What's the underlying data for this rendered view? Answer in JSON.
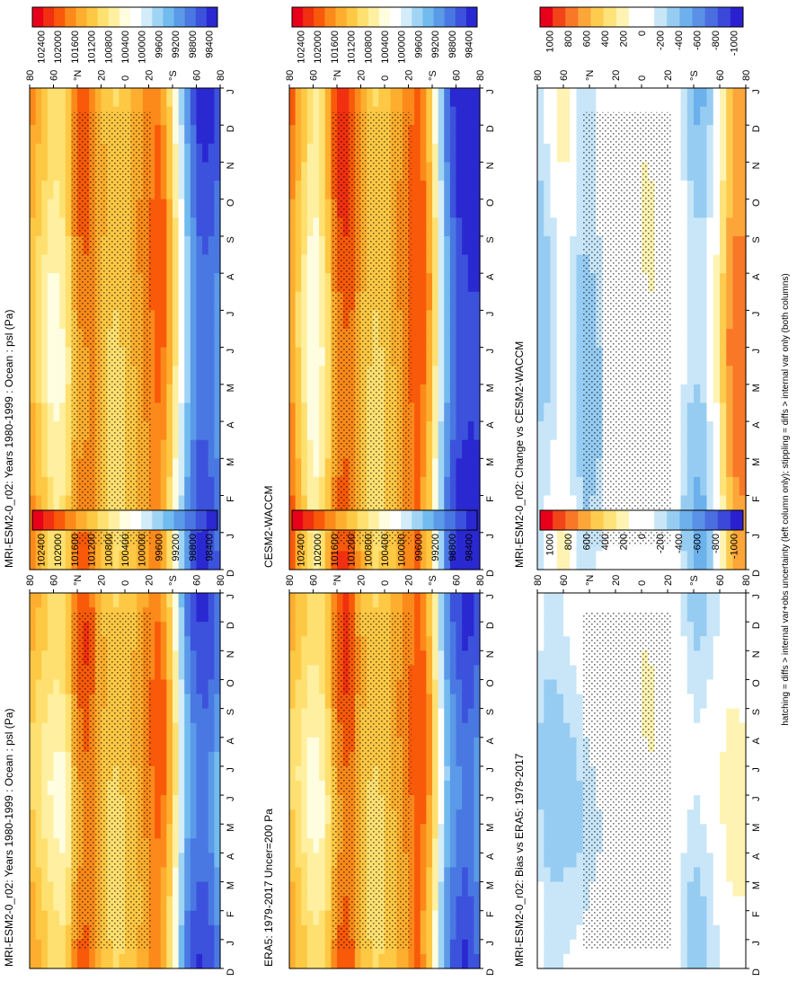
{
  "figure": {
    "footnote": "hatching = diffs > internal var+obs uncertainty (left column only); stippling = diffs > internal var only (both columns)"
  },
  "colors": {
    "abs_scale": [
      "#e8001a",
      "#f03010",
      "#f85a0a",
      "#fb8a1a",
      "#fdae2e",
      "#fdc844",
      "#fee070",
      "#fef0a0",
      "#fffde0",
      "#ffffff",
      "#d2ecfa",
      "#a0d4f5",
      "#72bbee",
      "#5a9ae8",
      "#4a78e2",
      "#3c52dc",
      "#2a28d0"
    ],
    "diff_scale": [
      "#e8001a",
      "#f24418",
      "#f87828",
      "#fca63a",
      "#fdcc4e",
      "#fee27a",
      "#fef3b2",
      "#ffffff",
      "#ffffff",
      "#c8e6f8",
      "#96ccf2",
      "#6cb0ec",
      "#5a90e6",
      "#4a6ee0",
      "#3c48da",
      "#2a20d0"
    ]
  },
  "chart_data": [
    {
      "type": "heatmap",
      "panel": "left-top",
      "title": "MRI-ESM2-0_r02: Years 1980-1999 : Ocean : psl (Pa)",
      "x_ticks": [
        "D",
        "J",
        "F",
        "M",
        "A",
        "M",
        "J",
        "J",
        "A",
        "S",
        "O",
        "N",
        "D",
        "J"
      ],
      "y_ticks": [
        "80",
        "60",
        "40",
        "20",
        "0",
        "20",
        "40",
        "60",
        "80"
      ],
      "y_tick_labels_rendered": [
        "80",
        "60",
        "°N",
        "20",
        "0",
        "20",
        "°S",
        "60",
        "80"
      ],
      "colorbar_ticks": [
        "102400",
        "102000",
        "101600",
        "101200",
        "100800",
        "100400",
        "100000",
        "99600",
        "99200",
        "98800",
        "98400"
      ],
      "latitude_profile_Pa": [
        [
          80,
          101300
        ],
        [
          60,
          100700
        ],
        [
          50,
          100700
        ],
        [
          40,
          101700
        ],
        [
          30,
          101900
        ],
        [
          20,
          101300
        ],
        [
          10,
          101000
        ],
        [
          0,
          101100
        ],
        [
          -10,
          101300
        ],
        [
          -20,
          101700
        ],
        [
          -30,
          101900
        ],
        [
          -40,
          101000
        ],
        [
          -50,
          99300
        ],
        [
          -60,
          98700
        ],
        [
          -70,
          98700
        ],
        [
          -80,
          99200
        ]
      ],
      "stippling": "most of 30N–50S",
      "hatching": "near 55N in Feb–Mar and Nov–Dec"
    },
    {
      "type": "heatmap",
      "panel": "right-top",
      "title": "MRI-ESM2-0_r02: Years 1980-1999 : Ocean : psl (Pa)",
      "x_ticks": [
        "D",
        "J",
        "F",
        "M",
        "A",
        "M",
        "J",
        "J",
        "A",
        "S",
        "O",
        "N",
        "D",
        "J"
      ],
      "y_ticks": [
        "80",
        "60",
        "40",
        "20",
        "0",
        "20",
        "40",
        "60",
        "80"
      ],
      "y_tick_labels_rendered": [
        "80",
        "60",
        "°N",
        "20",
        "0",
        "20",
        "°S",
        "60",
        "80"
      ],
      "colorbar_ticks": [
        "102400",
        "102000",
        "101600",
        "101200",
        "100800",
        "100400",
        "100000",
        "99600",
        "99200",
        "98800",
        "98400"
      ],
      "latitude_profile_Pa": [
        [
          80,
          101500
        ],
        [
          60,
          100600
        ],
        [
          50,
          100800
        ],
        [
          40,
          101700
        ],
        [
          30,
          101800
        ],
        [
          20,
          101300
        ],
        [
          10,
          101000
        ],
        [
          0,
          101100
        ],
        [
          -10,
          101400
        ],
        [
          -20,
          101700
        ],
        [
          -30,
          101900
        ],
        [
          -40,
          101000
        ],
        [
          -50,
          99600
        ],
        [
          -60,
          98700
        ],
        [
          -70,
          98600
        ],
        [
          -80,
          99000
        ]
      ],
      "stippling": "most of 40N–55S"
    },
    {
      "type": "heatmap",
      "panel": "left-middle",
      "title": "ERA5: 1979-2017 Uncer=200 Pa",
      "x_ticks": [
        "D",
        "J",
        "F",
        "M",
        "A",
        "M",
        "J",
        "J",
        "A",
        "S",
        "O",
        "N",
        "D",
        "J"
      ],
      "y_ticks": [
        "80",
        "60",
        "40",
        "20",
        "0",
        "20",
        "40",
        "60",
        "80"
      ],
      "y_tick_labels_rendered": [
        "80",
        "60",
        "°N",
        "20",
        "0",
        "20",
        "°S",
        "60",
        "80"
      ],
      "colorbar_ticks": [
        "102400",
        "102000",
        "101600",
        "101200",
        "100800",
        "100400",
        "100000",
        "99600",
        "99200",
        "98800",
        "98400"
      ],
      "latitude_profile_Pa": [
        [
          80,
          101300
        ],
        [
          60,
          100600
        ],
        [
          50,
          100800
        ],
        [
          40,
          101700
        ],
        [
          30,
          102000
        ],
        [
          20,
          101300
        ],
        [
          10,
          101000
        ],
        [
          0,
          101100
        ],
        [
          -10,
          101400
        ],
        [
          -20,
          101700
        ],
        [
          -30,
          102000
        ],
        [
          -40,
          101200
        ],
        [
          -50,
          99400
        ],
        [
          -60,
          98800
        ],
        [
          -70,
          98600
        ],
        [
          -80,
          99000
        ]
      ]
    },
    {
      "type": "heatmap",
      "panel": "right-middle",
      "title": "CESM2-WACCM",
      "x_ticks": [
        "D",
        "J",
        "F",
        "M",
        "A",
        "M",
        "J",
        "J",
        "A",
        "S",
        "O",
        "N",
        "D",
        "J"
      ],
      "y_ticks": [
        "80",
        "60",
        "40",
        "20",
        "0",
        "20",
        "40",
        "60",
        "80"
      ],
      "y_tick_labels_rendered": [
        "80",
        "60",
        "°N",
        "20",
        "0",
        "20",
        "°S",
        "60",
        "80"
      ],
      "colorbar_ticks": [
        "102400",
        "102000",
        "101600",
        "101200",
        "100800",
        "100400",
        "100000",
        "99600",
        "99200",
        "98800",
        "98400"
      ],
      "latitude_profile_Pa": [
        [
          80,
          101800
        ],
        [
          60,
          100400
        ],
        [
          50,
          100900
        ],
        [
          40,
          101900
        ],
        [
          30,
          102000
        ],
        [
          20,
          101400
        ],
        [
          10,
          101000
        ],
        [
          0,
          101100
        ],
        [
          -10,
          101400
        ],
        [
          -20,
          101800
        ],
        [
          -30,
          102000
        ],
        [
          -40,
          101100
        ],
        [
          -50,
          99300
        ],
        [
          -60,
          98500
        ],
        [
          -70,
          98300
        ],
        [
          -80,
          98300
        ]
      ],
      "stippling": "most of 80N–80S"
    },
    {
      "type": "heatmap",
      "panel": "left-bottom",
      "title": "MRI-ESM2-0_r02: Bias vs ERA5: 1979-2017",
      "x_ticks": [
        "D",
        "J",
        "F",
        "M",
        "A",
        "M",
        "J",
        "J",
        "A",
        "S",
        "O",
        "N",
        "D",
        "J"
      ],
      "y_ticks": [
        "80",
        "60",
        "40",
        "20",
        "0",
        "20",
        "40",
        "60",
        "80"
      ],
      "y_tick_labels_rendered": [
        "80",
        "60",
        "°N",
        "20",
        "0",
        "20",
        "°S",
        "60",
        "80"
      ],
      "colorbar_ticks": [
        "1000",
        "800",
        "600",
        "400",
        "200",
        "0",
        "-200",
        "-400",
        "-600",
        "-800",
        "-1000"
      ],
      "latitude_profile_Pa": [
        [
          80,
          -150
        ],
        [
          70,
          -300
        ],
        [
          60,
          -250
        ],
        [
          50,
          -200
        ],
        [
          40,
          -100
        ],
        [
          30,
          0
        ],
        [
          20,
          100
        ],
        [
          10,
          0
        ],
        [
          0,
          100
        ],
        [
          -10,
          100
        ],
        [
          -20,
          0
        ],
        [
          -30,
          -50
        ],
        [
          -40,
          -250
        ],
        [
          -50,
          -200
        ],
        [
          -60,
          0
        ],
        [
          -70,
          150
        ],
        [
          -80,
          100
        ]
      ]
    },
    {
      "type": "heatmap",
      "panel": "right-bottom",
      "title": "MRI-ESM2-0_r02: Change vs CESM2-WACCM",
      "x_ticks": [
        "D",
        "J",
        "F",
        "M",
        "A",
        "M",
        "J",
        "J",
        "A",
        "S",
        "O",
        "N",
        "D",
        "J"
      ],
      "y_ticks": [
        "80",
        "60",
        "40",
        "20",
        "0",
        "20",
        "40",
        "60",
        "80"
      ],
      "y_tick_labels_rendered": [
        "80",
        "60",
        "°N",
        "20",
        "0",
        "20",
        "°S",
        "60",
        "80"
      ],
      "colorbar_ticks": [
        "1000",
        "800",
        "600",
        "400",
        "200",
        "0",
        "-200",
        "-400",
        "-600",
        "-800",
        "-1000"
      ],
      "latitude_profile_Pa": [
        [
          80,
          -300
        ],
        [
          70,
          -200
        ],
        [
          60,
          150
        ],
        [
          50,
          -250
        ],
        [
          40,
          -300
        ],
        [
          30,
          -150
        ],
        [
          20,
          100
        ],
        [
          10,
          0
        ],
        [
          0,
          100
        ],
        [
          -10,
          100
        ],
        [
          -20,
          0
        ],
        [
          -30,
          -100
        ],
        [
          -40,
          -350
        ],
        [
          -50,
          -300
        ],
        [
          -60,
          200
        ],
        [
          -70,
          700
        ],
        [
          -80,
          700
        ]
      ]
    }
  ]
}
